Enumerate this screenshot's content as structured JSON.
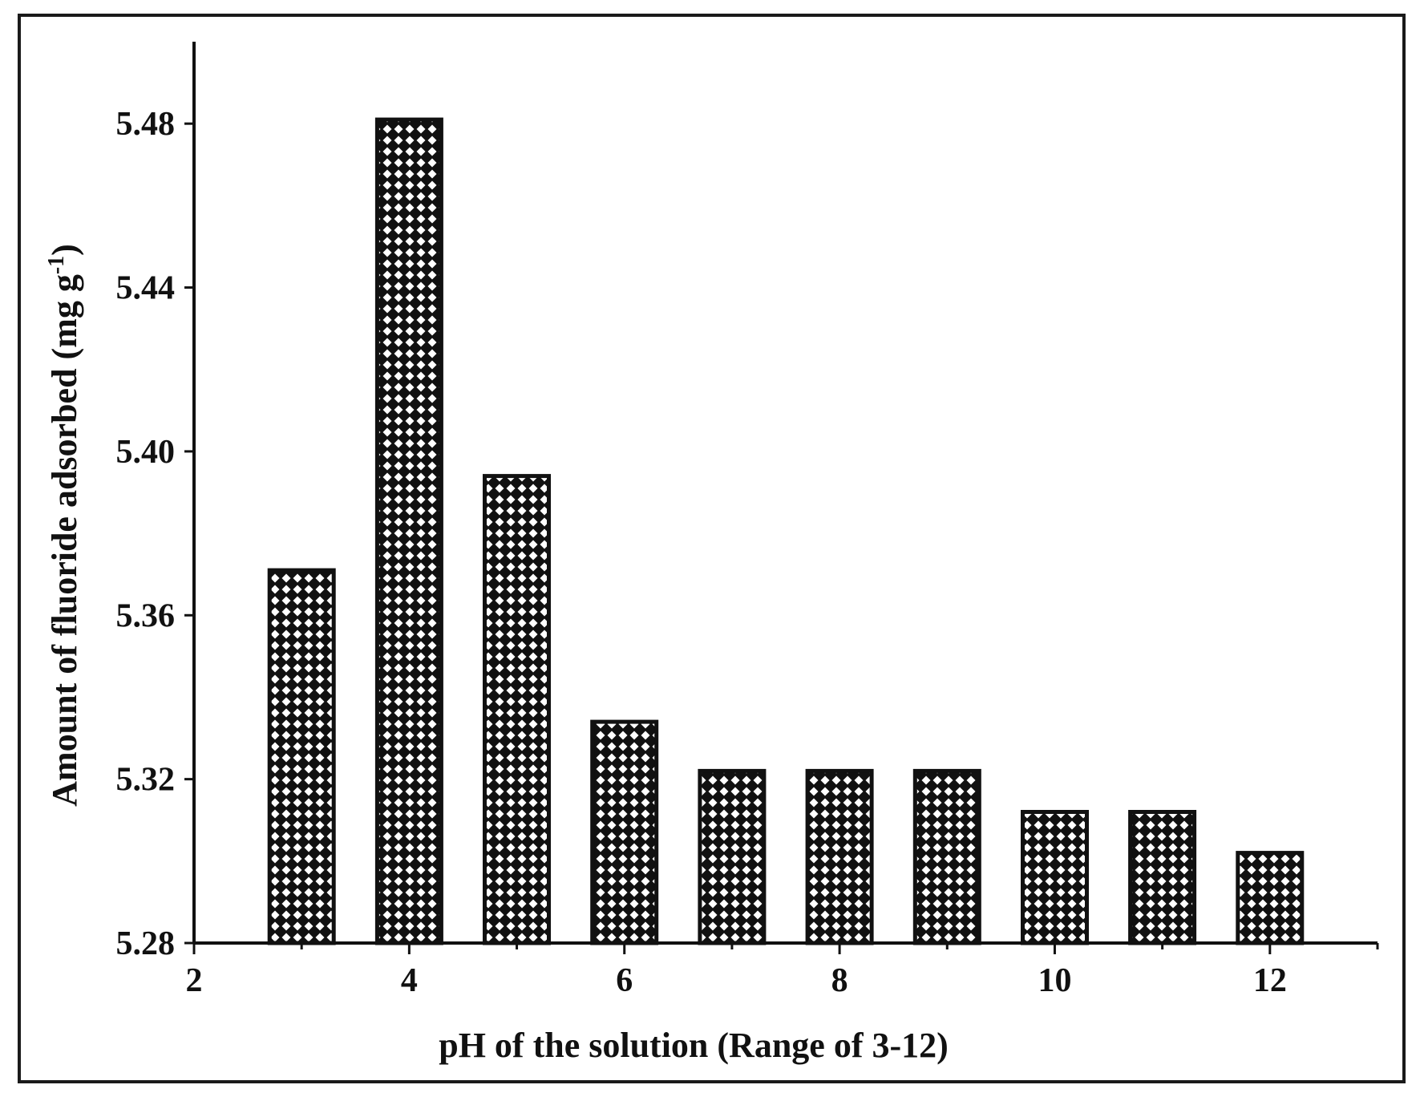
{
  "chart_data": {
    "type": "bar",
    "title": "",
    "xlabel": "pH of the solution (Range of 3-12)",
    "ylabel": "Amount of fluoride adsorbed (mg g",
    "ylabel_superscript": "-1",
    "ylabel_close": ")",
    "xlim": [
      2,
      13
    ],
    "ylim": [
      5.28,
      5.5
    ],
    "x_ticks": [
      2,
      4,
      6,
      8,
      10,
      12
    ],
    "y_ticks": [
      5.28,
      5.32,
      5.36,
      5.4,
      5.44,
      5.48
    ],
    "y_tick_labels": [
      "5.28",
      "5.32",
      "5.36",
      "5.40",
      "5.44",
      "5.48"
    ],
    "x": [
      3,
      4,
      5,
      6,
      7,
      8,
      9,
      10,
      11,
      12
    ],
    "values": [
      5.371,
      5.481,
      5.394,
      5.334,
      5.322,
      5.322,
      5.322,
      5.312,
      5.312,
      5.302
    ],
    "bar_pattern": "crosshatch-diamond",
    "bar_color": "#111111",
    "grid": false,
    "legend": "none"
  }
}
